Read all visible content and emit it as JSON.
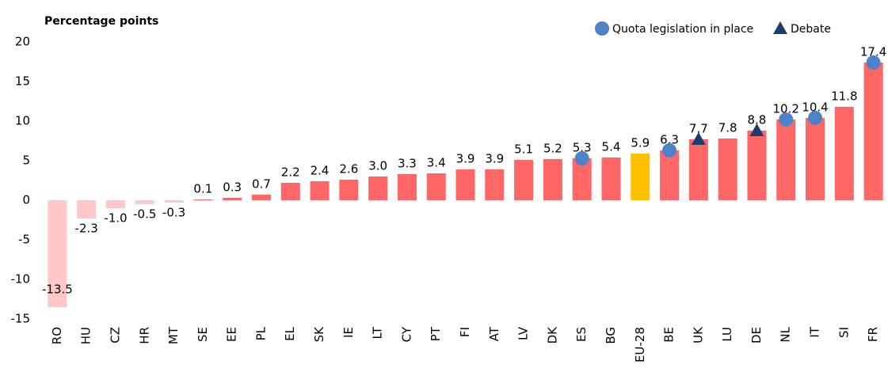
{
  "chart_data": {
    "type": "bar",
    "y_label": "Percentage points",
    "categories": [
      "RO",
      "HU",
      "CZ",
      "HR",
      "MT",
      "SE",
      "EE",
      "PL",
      "EL",
      "SK",
      "IE",
      "LT",
      "CY",
      "PT",
      "FI",
      "AT",
      "LV",
      "DK",
      "ES",
      "BG",
      "EU-28",
      "BE",
      "UK",
      "LU",
      "DE",
      "NL",
      "IT",
      "SI",
      "FR"
    ],
    "values": [
      -13.5,
      -2.3,
      -1.0,
      -0.5,
      -0.3,
      0.1,
      0.3,
      0.7,
      2.2,
      2.4,
      2.6,
      3.0,
      3.3,
      3.4,
      3.9,
      3.9,
      5.1,
      5.2,
      5.3,
      5.4,
      5.9,
      6.3,
      7.7,
      7.8,
      8.8,
      10.2,
      10.4,
      11.8,
      17.4
    ],
    "value_labels": [
      "-13.5",
      "-2.3",
      "-1.0",
      "-0.5",
      "-0.3",
      "0.1",
      "0.3",
      "0.7",
      "2.2",
      "2.4",
      "2.6",
      "3.0",
      "3.3",
      "3.4",
      "3.9",
      "3.9",
      "5.1",
      "5.2",
      "5.3",
      "5.4",
      "5.9",
      "6.3",
      "7.7",
      "7.8",
      "8.8",
      "10.2",
      "10.4",
      "11.8",
      "17.4"
    ],
    "colors": [
      "#ffc7c7",
      "#ffc7c7",
      "#ffc7c7",
      "#ffc7c7",
      "#ffc7c7",
      "#ff6666",
      "#ff6666",
      "#ff6666",
      "#ff6666",
      "#ff6666",
      "#ff6666",
      "#ff6666",
      "#ff6666",
      "#ff6666",
      "#ff6666",
      "#ff6666",
      "#ff6666",
      "#ff6666",
      "#ff6666",
      "#ff6666",
      "#ffc000",
      "#ff6666",
      "#ff6666",
      "#ff6666",
      "#ff6666",
      "#ff6666",
      "#ff6666",
      "#ff6666",
      "#ff6666"
    ],
    "markers": [
      {
        "name": "Quota legislation in place",
        "shape": "circle",
        "color": "#4f81c7",
        "categories": [
          "ES",
          "BE",
          "NL",
          "IT",
          "FR"
        ]
      },
      {
        "name": "Debate",
        "shape": "triangle",
        "color": "#1f3c6e",
        "categories": [
          "UK",
          "DE"
        ]
      }
    ],
    "ylim": [
      -15,
      20
    ],
    "yticks": [
      -15,
      -10,
      -5,
      0,
      5,
      10,
      15,
      20
    ],
    "grid": false
  }
}
